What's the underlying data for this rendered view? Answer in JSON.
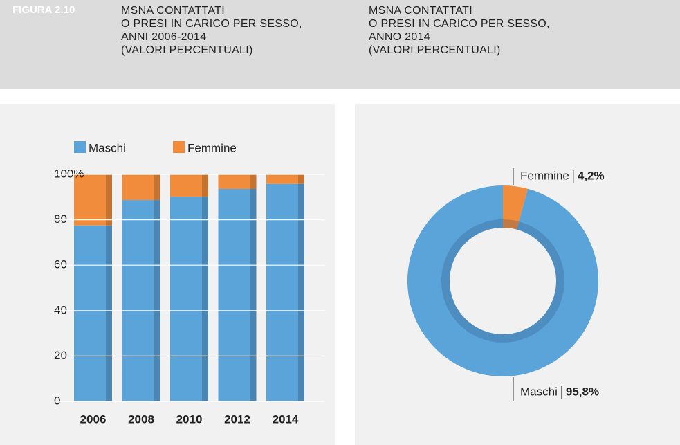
{
  "figure_label": "FIGURA 2.10",
  "chart_data": [
    {
      "type": "stacked_bar",
      "title": "MSNA CONTATTATI\nO PRESI IN CARICO PER SESSO,\nANNI 2006-2014\n(VALORI PERCENTUALI)",
      "categories": [
        "2006",
        "2008",
        "2010",
        "2012",
        "2014"
      ],
      "series": [
        {
          "name": "Maschi",
          "color": "#5ba4da",
          "values": [
            77.5,
            88.7,
            90.2,
            93.6,
            95.8
          ]
        },
        {
          "name": "Femmine",
          "color": "#f08c3c",
          "values": [
            22.5,
            11.3,
            9.8,
            6.4,
            4.2
          ]
        }
      ],
      "ylim": [
        0,
        100
      ],
      "yticks": [
        0,
        20,
        40,
        60,
        80,
        {
          "value": 100,
          "label": "100%"
        }
      ],
      "grid": true
    },
    {
      "type": "donut",
      "title": "MSNA CONTATTATI\nO PRESI IN CARICO PER SESSO,\nANNO 2014\n(VALORI PERCENTUALI)",
      "categories": [
        "Femmine",
        "Maschi"
      ],
      "values": [
        4.2,
        95.8
      ],
      "value_labels": [
        "4,2%",
        "95,8%"
      ],
      "colors": [
        "#f08c3c",
        "#5ba4da"
      ]
    }
  ]
}
